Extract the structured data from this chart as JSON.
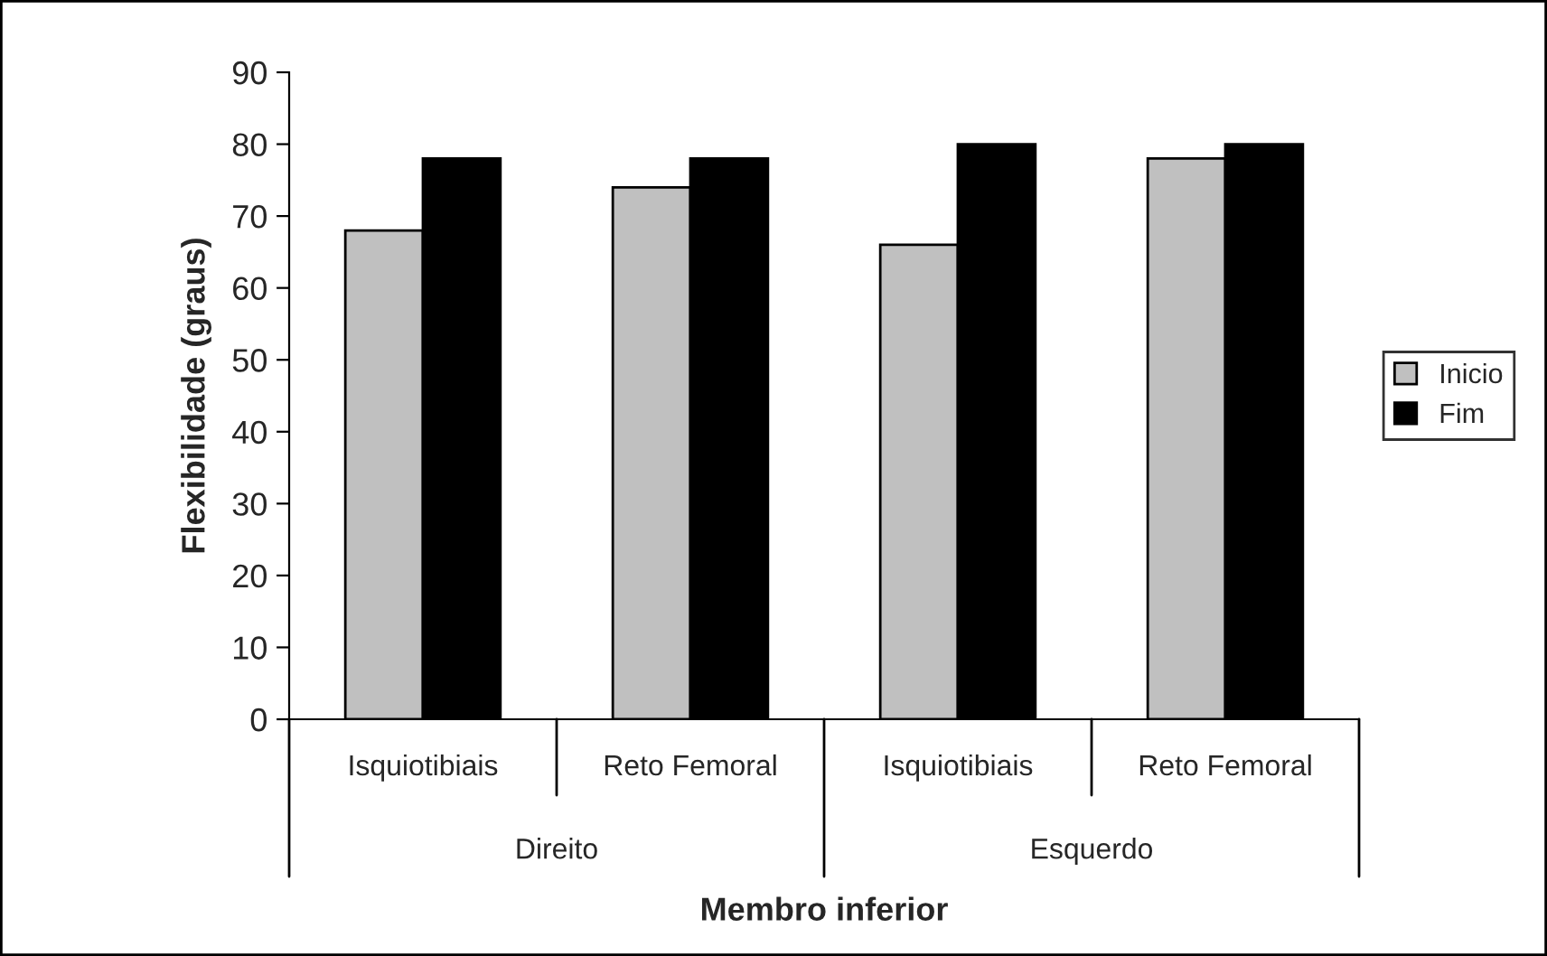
{
  "chart_data": {
    "type": "bar",
    "xlabel": "Membro inferior",
    "ylabel": "Flexibilidade (graus)",
    "categories": [
      "Isquiotibiais",
      "Reto Femoral",
      "Isquiotibiais",
      "Reto Femoral"
    ],
    "series": [
      {
        "name": "Inicio",
        "color": "#c0c0c0",
        "values": [
          68,
          74,
          66,
          78
        ]
      },
      {
        "name": "Fim",
        "color": "#000000",
        "values": [
          78,
          78,
          80,
          80
        ]
      }
    ],
    "annotations": [
      "Direito",
      "Esquerdo"
    ],
    "ylim": [
      0,
      90
    ],
    "yticks": [
      0,
      10,
      20,
      30,
      40,
      50,
      60,
      70,
      80,
      90
    ],
    "grid": false,
    "legend": "right"
  }
}
